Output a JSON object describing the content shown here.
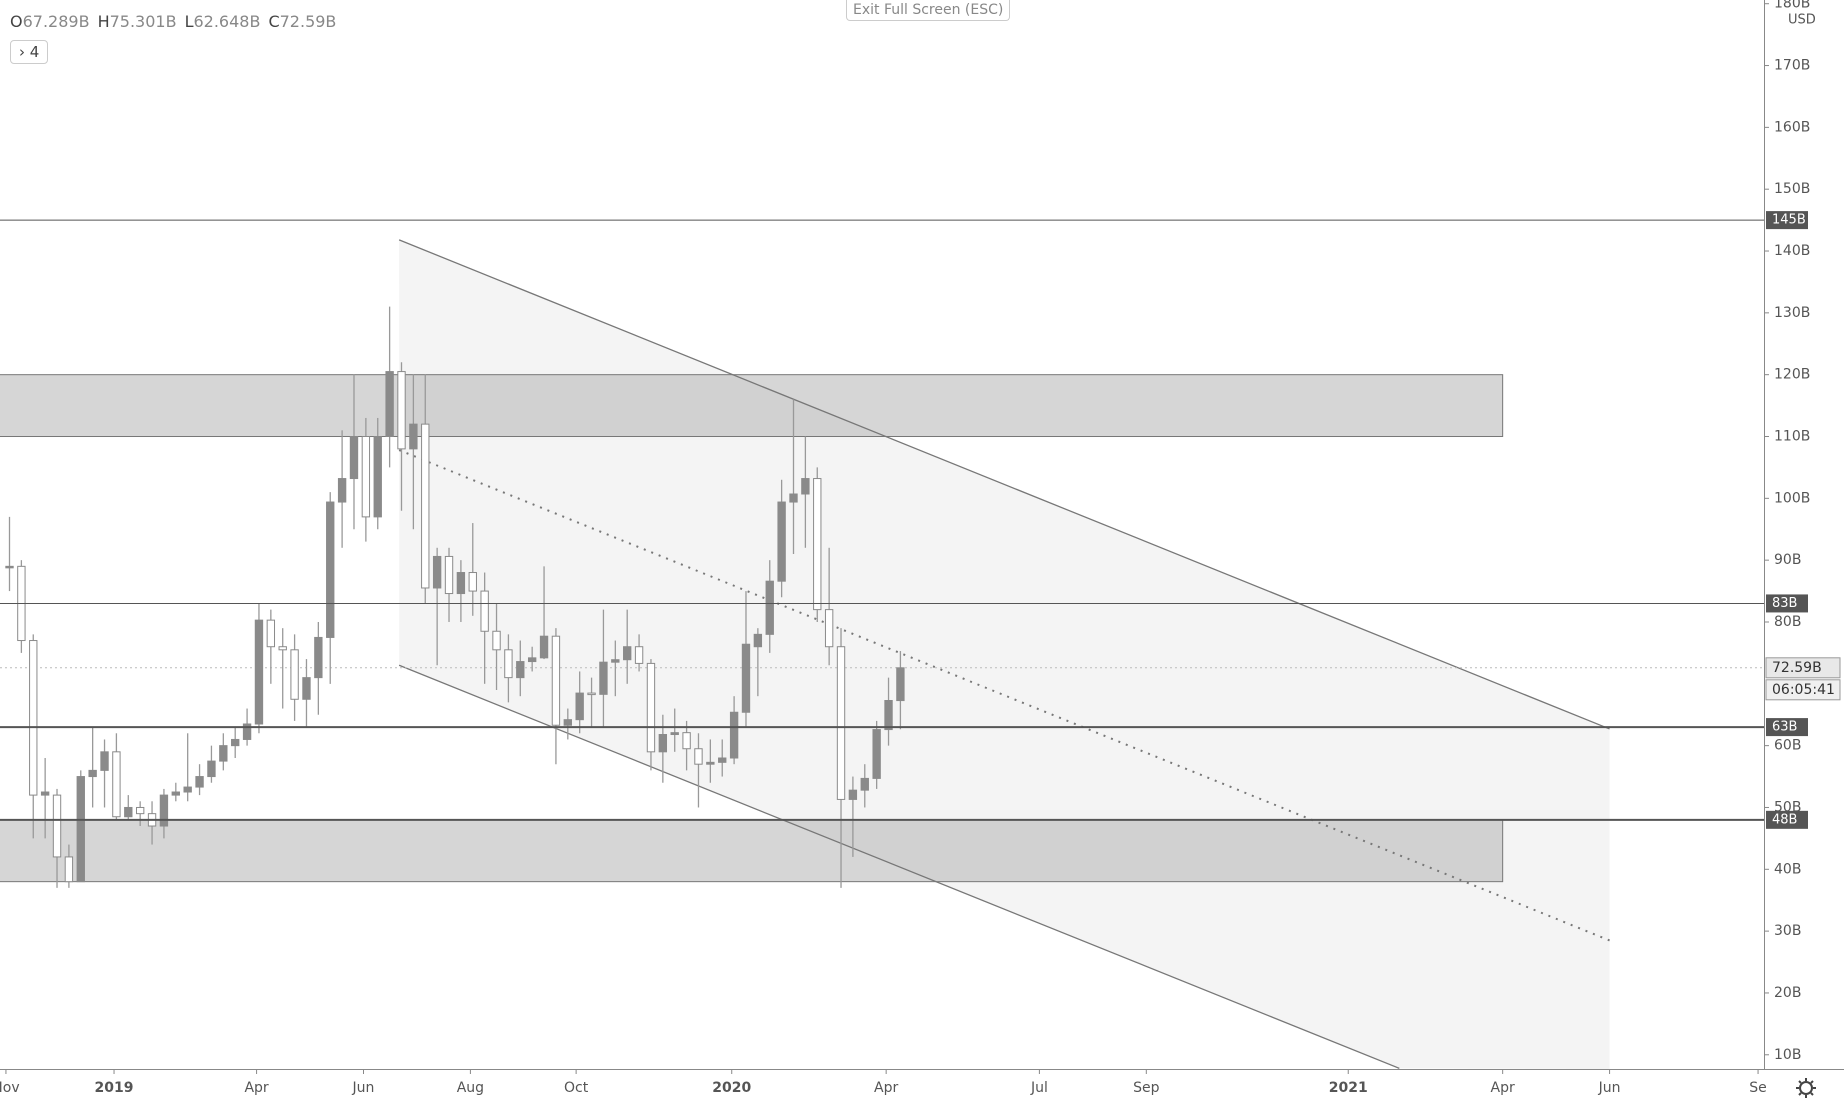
{
  "header": {
    "ohlc": [
      {
        "key": "O",
        "value": "67.289B"
      },
      {
        "key": "H",
        "value": "75.301B"
      },
      {
        "key": "L",
        "value": "62.648B"
      },
      {
        "key": "C",
        "value": "72.59B"
      }
    ],
    "indicators": "4",
    "exit_fullscreen": "Exit Full Screen (ESC)"
  },
  "chart_data": {
    "type": "candlestick",
    "currency": "USD",
    "x": [
      0,
      1,
      2,
      3,
      4,
      5,
      6,
      7,
      8,
      9,
      10,
      11,
      12,
      13,
      14,
      15,
      16,
      17,
      18,
      19,
      20,
      21,
      22,
      23,
      24,
      25,
      26,
      27,
      28,
      29,
      30,
      31,
      32,
      33,
      34,
      35,
      36,
      37,
      38,
      39,
      40,
      41,
      42,
      43,
      44,
      45,
      46,
      47,
      48,
      49,
      50,
      51,
      52,
      53,
      54,
      55,
      56,
      57,
      58,
      59,
      60,
      61,
      62,
      63,
      64,
      65,
      66,
      67,
      68,
      69,
      70,
      71,
      72,
      73,
      74,
      75
    ],
    "open": [
      89,
      89,
      77,
      52,
      52,
      42,
      38,
      55,
      56,
      59,
      48.5,
      50,
      49,
      47,
      52,
      52.5,
      53.3,
      55,
      57.5,
      60,
      61,
      63.5,
      80.3,
      76,
      75.5,
      67.5,
      71,
      77.5,
      99.4,
      103.2,
      110,
      97,
      110,
      120.5,
      108,
      112,
      85.5,
      90.6,
      84.6,
      88,
      85,
      78.5,
      75.5,
      71,
      73.6,
      74.2,
      77.7,
      63.3,
      64.2,
      68.5,
      68.3,
      73.5,
      73.9,
      76,
      73.3,
      59,
      61.8,
      62.1,
      59.5,
      57,
      57.3,
      58,
      65.4,
      76,
      78,
      86.6,
      99.4,
      100.7,
      103.2,
      82,
      76,
      51.3,
      52.8,
      54.7,
      62.6,
      67.289
    ],
    "high": [
      97,
      90,
      78,
      58,
      53,
      44,
      56,
      63,
      61,
      62,
      52,
      51,
      51,
      53,
      54,
      62,
      57,
      60,
      62,
      63,
      66,
      83,
      82,
      79,
      78,
      74,
      80,
      101,
      111,
      120,
      113,
      113,
      131,
      122,
      120,
      120,
      92,
      92,
      90,
      96,
      88,
      83,
      78,
      77,
      76,
      89,
      79,
      66,
      72,
      71,
      82,
      77,
      82,
      78,
      74,
      65,
      66,
      64,
      62,
      61,
      61,
      68,
      85,
      79,
      90,
      103,
      116,
      110,
      105,
      92,
      79,
      55,
      57,
      64,
      71,
      75.301
    ],
    "low": [
      85,
      75,
      45,
      45,
      37,
      37,
      38,
      50,
      50,
      48,
      48,
      47,
      44,
      45,
      51,
      51,
      52,
      54,
      56,
      58,
      60,
      62,
      70,
      66,
      64,
      63,
      65,
      70,
      92,
      95,
      93,
      95,
      105,
      98,
      95,
      83,
      73,
      80,
      80,
      81,
      70,
      69,
      67,
      68,
      72,
      74,
      57,
      61,
      62,
      63,
      63,
      68,
      70,
      72,
      56,
      54,
      59,
      56,
      50,
      54,
      55,
      57,
      63,
      68,
      75,
      84,
      91,
      92,
      80,
      73,
      37,
      42,
      50,
      53,
      60,
      62.648
    ],
    "close": [
      89,
      77,
      52,
      52.5,
      42,
      38,
      55,
      56,
      59,
      48.5,
      50,
      49,
      47,
      52,
      52.5,
      53.3,
      55,
      57.5,
      60,
      61,
      63.5,
      80.3,
      76,
      75.5,
      67.5,
      71,
      77.5,
      99.4,
      103.2,
      110,
      97,
      110,
      120.5,
      108,
      112,
      85.5,
      90.6,
      84.6,
      88,
      85,
      78.5,
      75.5,
      71,
      73.6,
      74.2,
      77.7,
      63.3,
      64.2,
      68.5,
      68.3,
      73.5,
      73.9,
      76,
      73.3,
      59,
      61.8,
      62.1,
      59.5,
      57,
      57.3,
      58,
      65.4,
      76.4,
      78,
      86.6,
      99.4,
      100.7,
      103.2,
      82,
      76,
      51.3,
      52.8,
      54.7,
      62.6,
      67.3,
      72.59
    ],
    "up_color": "#8a8a8a",
    "down_color": "#ffffff",
    "wick_color": "#999999",
    "xlim": [
      -0.8,
      147.7
    ],
    "ylim": [
      7.7,
      180.6
    ],
    "xticks": [
      {
        "value": -0.3,
        "label": "Nov"
      },
      {
        "value": 8.8,
        "label": "2019"
      },
      {
        "value": 20.8,
        "label": "Apr"
      },
      {
        "value": 29.8,
        "label": "Jun"
      },
      {
        "value": 38.8,
        "label": "Aug"
      },
      {
        "value": 47.7,
        "label": "Oct"
      },
      {
        "value": 60.8,
        "label": "2020"
      },
      {
        "value": 73.8,
        "label": "Apr"
      },
      {
        "value": 86.7,
        "label": "Jul"
      },
      {
        "value": 95.7,
        "label": "Sep"
      },
      {
        "value": 112.7,
        "label": "2021"
      },
      {
        "value": 125.7,
        "label": "Apr"
      },
      {
        "value": 134.7,
        "label": "Jun"
      },
      {
        "value": 147.2,
        "label": "Se"
      }
    ],
    "yticks": [
      {
        "value": 10,
        "label": "10B"
      },
      {
        "value": 20,
        "label": "20B"
      },
      {
        "value": 30,
        "label": "30B"
      },
      {
        "value": 40,
        "label": "40B"
      },
      {
        "value": 50,
        "label": "50B"
      },
      {
        "value": 60,
        "label": "60B"
      },
      {
        "value": 80,
        "label": "80B"
      },
      {
        "value": 90,
        "label": "90B"
      },
      {
        "value": 100,
        "label": "100B"
      },
      {
        "value": 110,
        "label": "110B"
      },
      {
        "value": 120,
        "label": "120B"
      },
      {
        "value": 130,
        "label": "130B"
      },
      {
        "value": 140,
        "label": "140B"
      },
      {
        "value": 150,
        "label": "150B"
      },
      {
        "value": 160,
        "label": "160B"
      },
      {
        "value": 170,
        "label": "170B"
      },
      {
        "value": 180,
        "label": "180B"
      }
    ],
    "levels": [
      {
        "value": 145,
        "label": "145B",
        "width": 1
      },
      {
        "value": 83,
        "label": "83B",
        "width": 1
      },
      {
        "value": 63,
        "label": "63B",
        "width": 2
      },
      {
        "value": 48,
        "label": "48B",
        "width": 2
      }
    ],
    "zones": [
      {
        "from": 110,
        "to": 120,
        "x_end": 125.7
      },
      {
        "from": 38,
        "to": 48,
        "x_end": 125.7
      }
    ],
    "channel": {
      "upper": [
        [
          32.8,
          141.8
        ],
        [
          134.7,
          62.7
        ]
      ],
      "lower": [
        [
          32.8,
          73
        ],
        [
          117,
          7.8
        ]
      ],
      "mid": [
        [
          32.8,
          107.8
        ],
        [
          134.7,
          28.5
        ]
      ]
    },
    "last_price": {
      "value": 72.59,
      "label": "72.59B",
      "countdown": "06:05:41"
    }
  }
}
